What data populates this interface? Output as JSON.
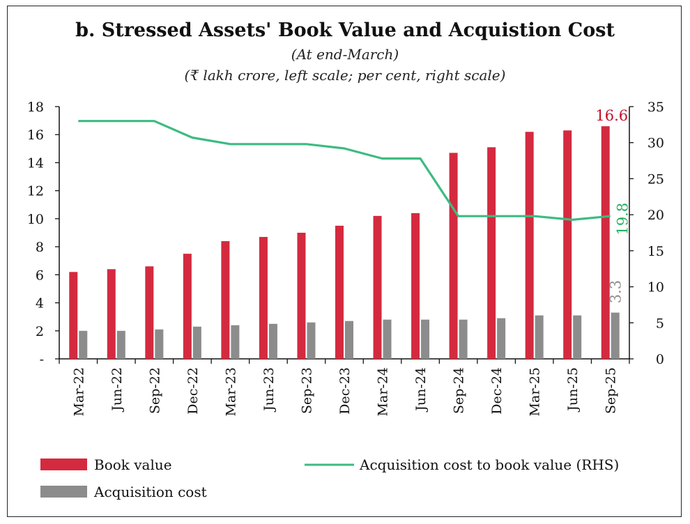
{
  "chart_data": {
    "type": "bar",
    "title": "b. Stressed Assets' Book Value and Acquistion Cost",
    "subtitle1": "(At end-March)",
    "subtitle2": "(₹ lakh crore, left scale; per cent, right scale)",
    "categories": [
      "Mar-22",
      "Jun-22",
      "Sep-22",
      "Dec-22",
      "Mar-23",
      "Jun-23",
      "Sep-23",
      "Dec-23",
      "Mar-24",
      "Jun-24",
      "Sep-24",
      "Dec-24",
      "Mar-25",
      "Jun-25",
      "Sep-25"
    ],
    "series": [
      {
        "name": "Book value",
        "type": "bar",
        "axis": "left",
        "color": "#d42a3f",
        "values": [
          6.2,
          6.4,
          6.6,
          7.5,
          8.4,
          8.7,
          9.0,
          9.5,
          10.2,
          10.4,
          14.7,
          15.1,
          16.2,
          16.3,
          16.6
        ]
      },
      {
        "name": "Acquisition cost",
        "type": "bar",
        "axis": "left",
        "color": "#8c8c8c",
        "values": [
          2.0,
          2.0,
          2.1,
          2.3,
          2.4,
          2.5,
          2.6,
          2.7,
          2.8,
          2.8,
          2.8,
          2.9,
          3.1,
          3.1,
          3.3
        ]
      },
      {
        "name": "Acquisition cost to book value (RHS)",
        "type": "line",
        "axis": "right",
        "color": "#3dbb82",
        "values": [
          33.0,
          33.0,
          33.0,
          30.7,
          29.8,
          29.8,
          29.8,
          29.2,
          27.8,
          27.8,
          19.8,
          19.8,
          19.8,
          19.3,
          19.8
        ]
      }
    ],
    "left_axis": {
      "min": 0,
      "max": 18,
      "ticks": [
        "-",
        "2",
        "4",
        "6",
        "8",
        "10",
        "12",
        "14",
        "16",
        "18"
      ]
    },
    "right_axis": {
      "min": 0,
      "max": 35,
      "ticks": [
        "0",
        "5",
        "10",
        "15",
        "20",
        "25",
        "30",
        "35"
      ]
    },
    "annotations": {
      "book_value_last": "16.6",
      "ratio_last": "19.8",
      "acq_cost_last": "3.3"
    },
    "annotation_colors": {
      "book_value_last": "#c0102a",
      "ratio_last": "#22b260",
      "acq_cost_last": "#8c8c8c"
    }
  }
}
